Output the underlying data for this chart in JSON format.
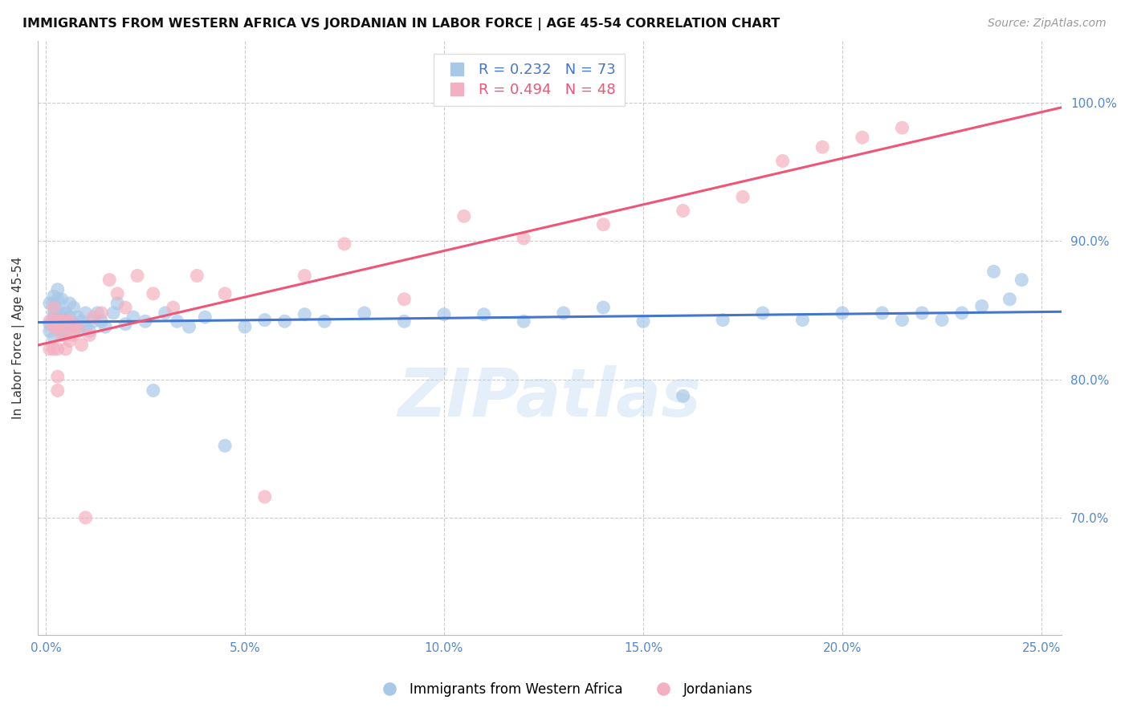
{
  "title": "IMMIGRANTS FROM WESTERN AFRICA VS JORDANIAN IN LABOR FORCE | AGE 45-54 CORRELATION CHART",
  "source": "Source: ZipAtlas.com",
  "ylabel": "In Labor Force | Age 45-54",
  "x_tick_labels": [
    "0.0%",
    "5.0%",
    "10.0%",
    "15.0%",
    "20.0%",
    "25.0%"
  ],
  "x_tick_positions": [
    0.0,
    0.05,
    0.1,
    0.15,
    0.2,
    0.25
  ],
  "y_tick_labels": [
    "70.0%",
    "80.0%",
    "90.0%",
    "100.0%"
  ],
  "y_tick_positions": [
    0.7,
    0.8,
    0.9,
    1.0
  ],
  "xlim": [
    -0.002,
    0.255
  ],
  "ylim": [
    0.615,
    1.045
  ],
  "blue_R": 0.232,
  "blue_N": 73,
  "pink_R": 0.494,
  "pink_N": 48,
  "blue_color": "#A8C8E8",
  "pink_color": "#F4B0C0",
  "blue_line_color": "#4477CC",
  "pink_line_color": "#EE5577",
  "legend_label_blue": "Immigrants from Western Africa",
  "legend_label_pink": "Jordanians",
  "watermark": "ZIPatlas",
  "blue_x": [
    0.001,
    0.001,
    0.001,
    0.002,
    0.002,
    0.002,
    0.002,
    0.002,
    0.003,
    0.003,
    0.003,
    0.003,
    0.003,
    0.004,
    0.004,
    0.004,
    0.004,
    0.005,
    0.005,
    0.005,
    0.006,
    0.006,
    0.006,
    0.007,
    0.007,
    0.008,
    0.008,
    0.009,
    0.01,
    0.01,
    0.011,
    0.012,
    0.013,
    0.014,
    0.015,
    0.017,
    0.018,
    0.02,
    0.022,
    0.025,
    0.027,
    0.03,
    0.033,
    0.036,
    0.04,
    0.045,
    0.05,
    0.055,
    0.06,
    0.065,
    0.07,
    0.08,
    0.09,
    0.1,
    0.11,
    0.12,
    0.13,
    0.14,
    0.15,
    0.16,
    0.17,
    0.18,
    0.19,
    0.2,
    0.21,
    0.215,
    0.22,
    0.225,
    0.23,
    0.235,
    0.238,
    0.242,
    0.245
  ],
  "blue_y": [
    0.84,
    0.855,
    0.835,
    0.848,
    0.86,
    0.83,
    0.845,
    0.855,
    0.838,
    0.85,
    0.858,
    0.865,
    0.842,
    0.848,
    0.858,
    0.835,
    0.845,
    0.832,
    0.848,
    0.84,
    0.838,
    0.845,
    0.855,
    0.84,
    0.852,
    0.835,
    0.845,
    0.842,
    0.838,
    0.848,
    0.835,
    0.842,
    0.848,
    0.842,
    0.838,
    0.848,
    0.855,
    0.84,
    0.845,
    0.842,
    0.792,
    0.848,
    0.842,
    0.838,
    0.845,
    0.752,
    0.838,
    0.843,
    0.842,
    0.847,
    0.842,
    0.848,
    0.842,
    0.847,
    0.847,
    0.842,
    0.848,
    0.852,
    0.842,
    0.788,
    0.843,
    0.848,
    0.843,
    0.848,
    0.848,
    0.843,
    0.848,
    0.843,
    0.848,
    0.853,
    0.878,
    0.858,
    0.872
  ],
  "pink_x": [
    0.001,
    0.001,
    0.002,
    0.002,
    0.002,
    0.002,
    0.003,
    0.003,
    0.003,
    0.003,
    0.003,
    0.004,
    0.004,
    0.004,
    0.005,
    0.005,
    0.005,
    0.006,
    0.006,
    0.007,
    0.007,
    0.008,
    0.009,
    0.01,
    0.011,
    0.012,
    0.014,
    0.016,
    0.018,
    0.02,
    0.023,
    0.027,
    0.032,
    0.038,
    0.045,
    0.055,
    0.065,
    0.075,
    0.09,
    0.105,
    0.12,
    0.14,
    0.16,
    0.175,
    0.185,
    0.195,
    0.205,
    0.215
  ],
  "pink_y": [
    0.842,
    0.822,
    0.852,
    0.842,
    0.822,
    0.838,
    0.792,
    0.842,
    0.822,
    0.802,
    0.838,
    0.842,
    0.842,
    0.832,
    0.842,
    0.822,
    0.838,
    0.828,
    0.842,
    0.838,
    0.832,
    0.838,
    0.825,
    0.7,
    0.832,
    0.845,
    0.848,
    0.872,
    0.862,
    0.852,
    0.875,
    0.862,
    0.852,
    0.875,
    0.862,
    0.715,
    0.875,
    0.898,
    0.858,
    0.918,
    0.902,
    0.912,
    0.922,
    0.932,
    0.958,
    0.968,
    0.975,
    0.982
  ]
}
